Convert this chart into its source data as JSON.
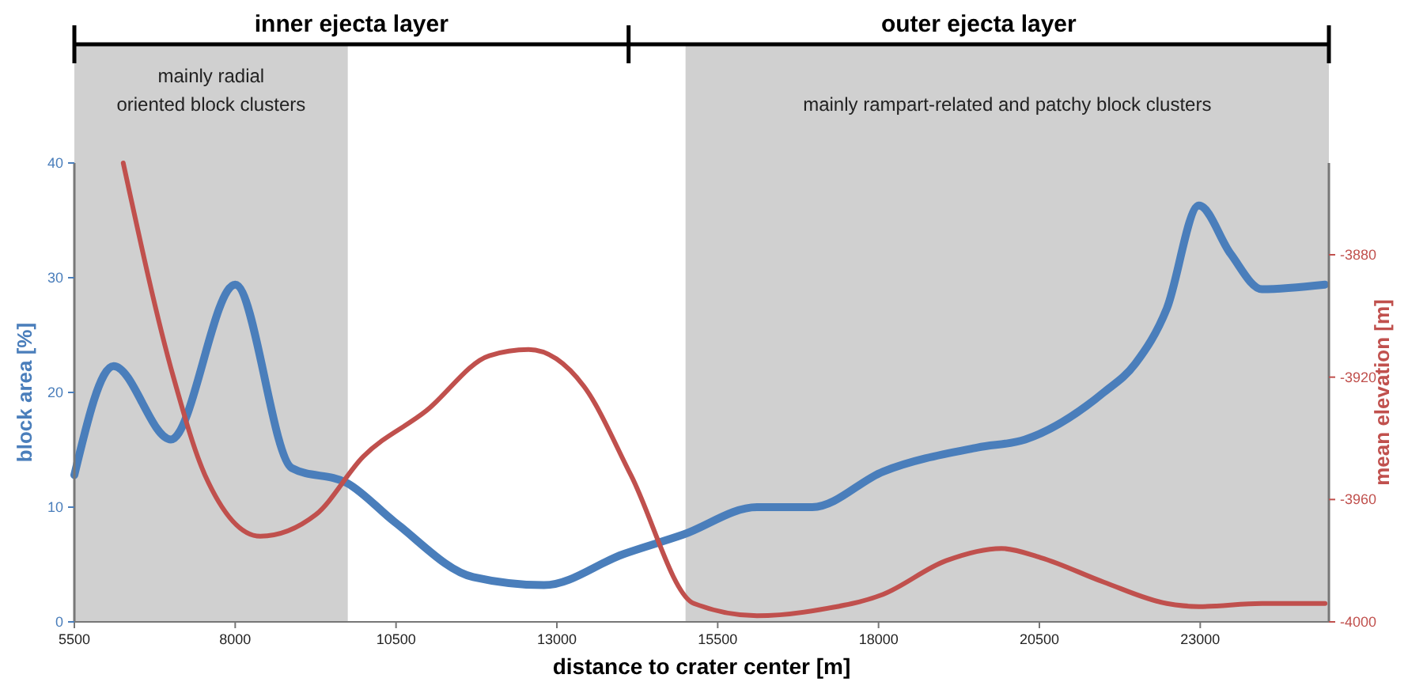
{
  "chart_data": {
    "type": "line",
    "xlabel": "distance to crater center [m]",
    "ylabel": "block area [%]",
    "y2label": "mean elevation [m]",
    "xlim": [
      5500,
      25000
    ],
    "xticks": [
      5500,
      8000,
      10500,
      13000,
      15500,
      18000,
      20500,
      23000
    ],
    "ylim": [
      0,
      40
    ],
    "yticks": [
      0,
      10,
      20,
      30,
      40
    ],
    "y2lim": [
      -4000,
      -3850
    ],
    "y2ticks": [
      -4000,
      -3960,
      -3920,
      -3880
    ],
    "grid": false,
    "series": [
      {
        "color": "#4a7ebb",
        "x": [
          5500,
          6110,
          7000,
          8000,
          8880,
          9740,
          10480,
          11700,
          12800,
          14030,
          14960,
          16110,
          16970,
          18070,
          19540,
          20280,
          21500,
          21990,
          22480,
          22980,
          23470,
          23960,
          24940
        ],
        "values": [
          12.8,
          22.3,
          15.9,
          29.4,
          13.4,
          12.1,
          8.7,
          3.9,
          3.2,
          5.9,
          7.6,
          10,
          10,
          13.1,
          15.2,
          15.9,
          20,
          22.5,
          27.3,
          36.3,
          32.1,
          29,
          29.4
        ]
      },
      {
        "color": "#c0504d",
        "axis": "y2",
        "x": [
          6260,
          7040,
          7530,
          8390,
          9250,
          9990,
          10970,
          11950,
          12560,
          13420,
          14150,
          15130,
          16110,
          17090,
          18070,
          19050,
          19910,
          20520,
          21500,
          22480,
          22980,
          23960,
          24940
        ],
        "values": [
          -3850,
          -3920,
          -3952,
          -3972,
          -3965,
          -3946,
          -3931,
          -3913,
          -3911,
          -3923,
          -3952,
          -3994,
          -3998,
          -3996,
          -3991,
          -3980,
          -3976,
          -3979,
          -3987,
          -3994,
          -3995,
          -3994,
          -3994
        ]
      }
    ],
    "bands": [
      {
        "axis": "x",
        "from": 5500,
        "to": 9750,
        "label": "mainly radial\noriented block clusters",
        "color": "#d0d0d0"
      },
      {
        "axis": "x",
        "from": 15000,
        "to": 25000,
        "label": "mainly rampart-related and patchy block clusters",
        "color": "#d0d0d0"
      }
    ],
    "annotations": [
      "inner ejecta layer",
      "outer ejecta layer"
    ]
  }
}
